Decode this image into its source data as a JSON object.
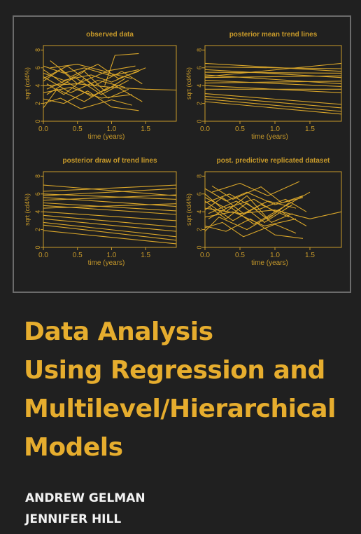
{
  "cover": {
    "title_lines": [
      "Data Analysis",
      "Using Regression and",
      "Multilevel/Hierarchical",
      "Models"
    ],
    "authors": [
      "ANDREW GELMAN",
      "JENNIFER HILL"
    ],
    "colors": {
      "background": "#202020",
      "title": "#e6ad2e",
      "authors": "#f2f2f2",
      "lines": "#d9a62a",
      "axes": "#c89a2a"
    }
  },
  "chart_data": [
    {
      "type": "line",
      "title": "observed data",
      "xlabel": "time (years)",
      "ylabel": "sqrt (cd4%)",
      "xlim": [
        0,
        1.95
      ],
      "ylim": [
        0,
        8.5
      ],
      "xticks": [
        0.0,
        0.5,
        1.0,
        1.5
      ],
      "xtick_labels": [
        "0.0",
        "0.5",
        "1.0",
        "1.5"
      ],
      "yticks": [
        0,
        2,
        4,
        6,
        8
      ],
      "ytick_labels": [
        "0",
        "2",
        "4",
        "6",
        "8"
      ],
      "series": [
        {
          "x": [
            0.0,
            0.3,
            0.6,
            1.0,
            1.4
          ],
          "y": [
            6.2,
            5.4,
            6.0,
            5.1,
            5.8
          ]
        },
        {
          "x": [
            0.0,
            0.25,
            0.5,
            0.9,
            1.3
          ],
          "y": [
            4.5,
            5.8,
            4.2,
            5.5,
            4.8
          ]
        },
        {
          "x": [
            0.0,
            0.4,
            0.8,
            1.2
          ],
          "y": [
            5.0,
            3.2,
            4.6,
            3.8
          ]
        },
        {
          "x": [
            0.05,
            0.35,
            0.7,
            1.05,
            1.45
          ],
          "y": [
            3.0,
            4.4,
            2.8,
            4.0,
            2.2
          ]
        },
        {
          "x": [
            0.0,
            0.3,
            0.65,
            1.0,
            1.4
          ],
          "y": [
            2.5,
            2.0,
            3.4,
            1.6,
            1.2
          ]
        },
        {
          "x": [
            0.0,
            0.5,
            1.0,
            1.5,
            1.95
          ],
          "y": [
            4.0,
            4.2,
            3.8,
            3.6,
            3.5
          ]
        },
        {
          "x": [
            0.1,
            0.4,
            0.8,
            1.1,
            1.4
          ],
          "y": [
            6.8,
            5.0,
            6.4,
            4.8,
            5.6
          ]
        },
        {
          "x": [
            0.0,
            0.2,
            0.6,
            0.95
          ],
          "y": [
            1.5,
            3.6,
            2.2,
            3.8
          ]
        },
        {
          "x": [
            0.0,
            0.3,
            0.7,
            1.0,
            1.5
          ],
          "y": [
            5.4,
            4.6,
            5.2,
            4.4,
            6.0
          ]
        },
        {
          "x": [
            0.05,
            0.45,
            0.85,
            1.25
          ],
          "y": [
            3.6,
            5.0,
            3.0,
            4.6
          ]
        },
        {
          "x": [
            0.0,
            0.35,
            0.75,
            1.15,
            1.45
          ],
          "y": [
            4.8,
            6.2,
            4.0,
            5.6,
            4.2
          ]
        },
        {
          "x": [
            0.0,
            0.25,
            0.55,
            1.0,
            1.3
          ],
          "y": [
            2.0,
            2.6,
            1.4,
            2.4,
            1.8
          ]
        },
        {
          "x": [
            0.1,
            0.5,
            0.9,
            1.35
          ],
          "y": [
            6.0,
            6.4,
            5.6,
            6.2
          ]
        },
        {
          "x": [
            0.9,
            1.05,
            1.4
          ],
          "y": [
            4.0,
            7.4,
            7.6
          ]
        },
        {
          "x": [
            0.0,
            0.3,
            0.6,
            0.9,
            1.2
          ],
          "y": [
            5.8,
            4.2,
            5.6,
            3.4,
            4.8
          ]
        },
        {
          "x": [
            0.0,
            0.4,
            0.85,
            1.3
          ],
          "y": [
            3.2,
            3.8,
            2.6,
            3.0
          ]
        },
        {
          "x": [
            0.05,
            0.3,
            0.6,
            0.95,
            1.25
          ],
          "y": [
            4.2,
            3.0,
            4.8,
            2.6,
            3.6
          ]
        }
      ]
    },
    {
      "type": "line",
      "title": "posterior mean trend lines",
      "xlabel": "time (years)",
      "ylabel": "sqrt (cd4%)",
      "xlim": [
        0,
        1.95
      ],
      "ylim": [
        0,
        8.5
      ],
      "xticks": [
        0.0,
        0.5,
        1.0,
        1.5
      ],
      "xtick_labels": [
        "0.0",
        "0.5",
        "1.0",
        "1.5"
      ],
      "yticks": [
        0,
        2,
        4,
        6,
        8
      ],
      "ytick_labels": [
        "0",
        "2",
        "4",
        "6",
        "8"
      ],
      "series": [
        {
          "x": [
            0,
            1.95
          ],
          "y": [
            6.5,
            5.6
          ]
        },
        {
          "x": [
            0,
            1.95
          ],
          "y": [
            6.1,
            5.9
          ]
        },
        {
          "x": [
            0,
            1.95
          ],
          "y": [
            5.8,
            4.9
          ]
        },
        {
          "x": [
            0,
            1.95
          ],
          "y": [
            5.5,
            5.4
          ]
        },
        {
          "x": [
            0,
            1.95
          ],
          "y": [
            5.2,
            4.2
          ]
        },
        {
          "x": [
            0,
            1.95
          ],
          "y": [
            4.9,
            5.1
          ]
        },
        {
          "x": [
            0,
            1.95
          ],
          "y": [
            4.6,
            3.9
          ]
        },
        {
          "x": [
            0,
            1.95
          ],
          "y": [
            4.3,
            4.5
          ]
        },
        {
          "x": [
            0,
            1.95
          ],
          "y": [
            4.0,
            3.2
          ]
        },
        {
          "x": [
            0,
            1.95
          ],
          "y": [
            3.6,
            3.6
          ]
        },
        {
          "x": [
            0,
            1.95
          ],
          "y": [
            3.1,
            1.9
          ]
        },
        {
          "x": [
            0,
            1.95
          ],
          "y": [
            2.8,
            1.5
          ]
        },
        {
          "x": [
            0,
            1.95
          ],
          "y": [
            2.5,
            1.1
          ]
        },
        {
          "x": [
            0,
            1.95
          ],
          "y": [
            2.2,
            0.8
          ]
        },
        {
          "x": [
            0,
            1.95
          ],
          "y": [
            5.0,
            6.5
          ]
        }
      ]
    },
    {
      "type": "line",
      "title": "posterior draw of trend lines",
      "xlabel": "time (years)",
      "ylabel": "sqrt (cd4%)",
      "xlim": [
        0,
        1.95
      ],
      "ylim": [
        0,
        8.5
      ],
      "xticks": [
        0.0,
        0.5,
        1.0,
        1.5
      ],
      "xtick_labels": [
        "0.0",
        "0.5",
        "1.0",
        "1.5"
      ],
      "yticks": [
        0,
        2,
        4,
        6,
        8
      ],
      "ytick_labels": [
        "0",
        "2",
        "4",
        "6",
        "8"
      ],
      "series": [
        {
          "x": [
            0,
            1.95
          ],
          "y": [
            7.0,
            5.8
          ]
        },
        {
          "x": [
            0,
            1.95
          ],
          "y": [
            6.3,
            7.0
          ]
        },
        {
          "x": [
            0,
            1.95
          ],
          "y": [
            6.0,
            5.4
          ]
        },
        {
          "x": [
            0,
            1.95
          ],
          "y": [
            5.6,
            4.6
          ]
        },
        {
          "x": [
            0,
            1.95
          ],
          "y": [
            5.3,
            5.9
          ]
        },
        {
          "x": [
            0,
            1.95
          ],
          "y": [
            5.0,
            4.1
          ]
        },
        {
          "x": [
            0,
            1.95
          ],
          "y": [
            4.7,
            3.7
          ]
        },
        {
          "x": [
            0,
            1.95
          ],
          "y": [
            4.4,
            4.9
          ]
        },
        {
          "x": [
            0,
            1.95
          ],
          "y": [
            4.0,
            3.0
          ]
        },
        {
          "x": [
            0,
            1.95
          ],
          "y": [
            3.6,
            2.3
          ]
        },
        {
          "x": [
            0,
            1.95
          ],
          "y": [
            3.2,
            1.8
          ]
        },
        {
          "x": [
            0,
            1.95
          ],
          "y": [
            2.8,
            1.2
          ]
        },
        {
          "x": [
            0,
            1.95
          ],
          "y": [
            2.5,
            0.8
          ]
        },
        {
          "x": [
            0,
            1.95
          ],
          "y": [
            1.9,
            0.4
          ]
        },
        {
          "x": [
            0,
            1.95
          ],
          "y": [
            5.8,
            6.6
          ]
        }
      ]
    },
    {
      "type": "line",
      "title": "post. predictive replicated dataset",
      "xlabel": "time (years)",
      "ylabel": "sqrt (cd4%)",
      "xlim": [
        0,
        1.95
      ],
      "ylim": [
        0,
        8.5
      ],
      "xticks": [
        0.0,
        0.5,
        1.0,
        1.5
      ],
      "xtick_labels": [
        "0.0",
        "0.5",
        "1.0",
        "1.5"
      ],
      "yticks": [
        0,
        2,
        4,
        6,
        8
      ],
      "ytick_labels": [
        "0",
        "2",
        "4",
        "6",
        "8"
      ],
      "series": [
        {
          "x": [
            0.0,
            0.3,
            0.6,
            1.0,
            1.4
          ],
          "y": [
            6.6,
            5.2,
            6.2,
            4.8,
            5.6
          ]
        },
        {
          "x": [
            0.0,
            0.25,
            0.55,
            0.9,
            1.3
          ],
          "y": [
            4.2,
            5.6,
            3.8,
            5.2,
            4.4
          ]
        },
        {
          "x": [
            0.0,
            0.4,
            0.8,
            1.2
          ],
          "y": [
            5.2,
            3.0,
            4.8,
            3.4
          ]
        },
        {
          "x": [
            0.05,
            0.35,
            0.7,
            1.05,
            1.45
          ],
          "y": [
            3.2,
            4.6,
            2.6,
            4.2,
            2.4
          ]
        },
        {
          "x": [
            0.0,
            0.3,
            0.65,
            1.0,
            1.4
          ],
          "y": [
            2.4,
            1.8,
            3.2,
            1.4,
            1.0
          ]
        },
        {
          "x": [
            0.0,
            0.5,
            1.0,
            1.5,
            1.95
          ],
          "y": [
            4.4,
            3.8,
            4.2,
            3.2,
            4.0
          ]
        },
        {
          "x": [
            0.1,
            0.4,
            0.8,
            1.1,
            1.4
          ],
          "y": [
            6.9,
            5.4,
            6.8,
            5.0,
            5.8
          ]
        },
        {
          "x": [
            0.0,
            0.2,
            0.6,
            0.95
          ],
          "y": [
            1.8,
            3.4,
            2.0,
            3.6
          ]
        },
        {
          "x": [
            0.0,
            0.3,
            0.7,
            1.0,
            1.5
          ],
          "y": [
            5.6,
            4.4,
            5.4,
            4.0,
            6.2
          ]
        },
        {
          "x": [
            0.05,
            0.45,
            0.85,
            1.25
          ],
          "y": [
            3.8,
            5.2,
            2.8,
            4.8
          ]
        },
        {
          "x": [
            0.0,
            0.35,
            0.75,
            1.15,
            1.45
          ],
          "y": [
            5.0,
            6.0,
            4.2,
            5.4,
            4.0
          ]
        },
        {
          "x": [
            0.0,
            0.25,
            0.55,
            1.0,
            1.3
          ],
          "y": [
            2.2,
            2.8,
            1.2,
            2.6,
            1.6
          ]
        },
        {
          "x": [
            0.1,
            0.5,
            0.9,
            1.35
          ],
          "y": [
            6.2,
            7.2,
            5.8,
            7.4
          ]
        },
        {
          "x": [
            0.0,
            0.3,
            0.6,
            0.9,
            1.2
          ],
          "y": [
            6.0,
            4.0,
            5.8,
            3.2,
            5.0
          ]
        },
        {
          "x": [
            0.0,
            0.4,
            0.85,
            1.3
          ],
          "y": [
            3.4,
            4.0,
            2.4,
            3.2
          ]
        },
        {
          "x": [
            0.05,
            0.3,
            0.6,
            0.95,
            1.25
          ],
          "y": [
            4.6,
            3.2,
            5.0,
            2.8,
            3.8
          ]
        }
      ]
    }
  ]
}
